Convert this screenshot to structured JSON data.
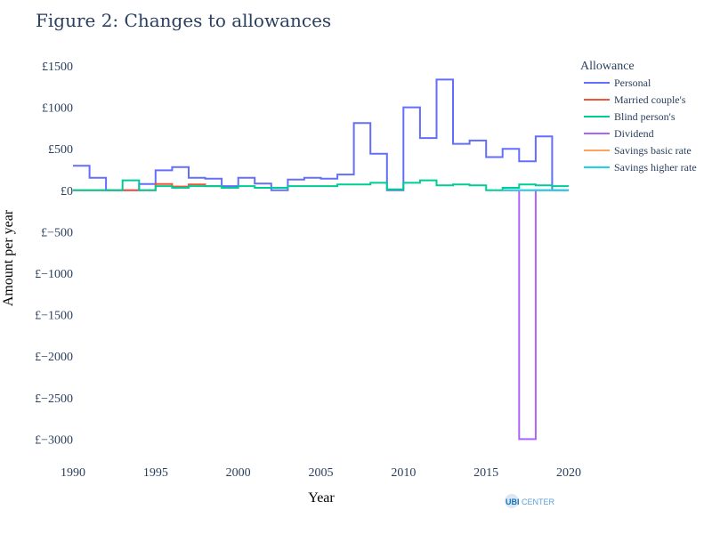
{
  "chart_data": {
    "type": "line",
    "line_shape": "step",
    "title": "Figure 2: Changes to allowances",
    "xlabel": "Year",
    "ylabel": "Amount per year",
    "xlim": [
      1990,
      2020
    ],
    "ylim": [
      -3200,
      1650
    ],
    "x_ticks": [
      1990,
      1995,
      2000,
      2005,
      2010,
      2015,
      2020
    ],
    "x_tick_labels": [
      "1990",
      "1995",
      "2000",
      "2005",
      "2010",
      "2015",
      "2020"
    ],
    "y_ticks": [
      1500,
      1000,
      500,
      0,
      -500,
      -1000,
      -1500,
      -2000,
      -2500,
      -3000
    ],
    "y_tick_labels": [
      "£1500",
      "£1000",
      "£500",
      "£0",
      "£−500",
      "£−1000",
      "£−1500",
      "£−2000",
      "£−2500",
      "£−3000"
    ],
    "grid": false,
    "legend_title": "Allowance",
    "legend_position": "right",
    "series": [
      {
        "name": "Personal",
        "color": "#636efa",
        "x": [
          1990,
          1991,
          1992,
          1993,
          1994,
          1995,
          1996,
          1997,
          1998,
          1999,
          2000,
          2001,
          2002,
          2003,
          2004,
          2005,
          2006,
          2007,
          2008,
          2009,
          2010,
          2011,
          2012,
          2013,
          2014,
          2015,
          2016,
          2017,
          2018,
          2019,
          2020
        ],
        "y": [
          295,
          150,
          0,
          0,
          75,
          240,
          280,
          150,
          140,
          50,
          150,
          80,
          0,
          130,
          150,
          140,
          190,
          810,
          440,
          0,
          1000,
          630,
          1335,
          560,
          600,
          400,
          500,
          350,
          650,
          0,
          0
        ]
      },
      {
        "name": "Married couple's",
        "color": "#ef553b",
        "x": [
          1990,
          1991,
          1992,
          1993,
          1994,
          1995,
          1996,
          1997,
          1998,
          1999
        ],
        "y": [
          0,
          0,
          0,
          0,
          0,
          75,
          45,
          70,
          50,
          50
        ]
      },
      {
        "name": "Blind person's",
        "color": "#00cc96",
        "x": [
          1990,
          1991,
          1992,
          1993,
          1994,
          1995,
          1996,
          1997,
          1998,
          1999,
          2000,
          2001,
          2002,
          2003,
          2004,
          2005,
          2006,
          2007,
          2008,
          2009,
          2010,
          2011,
          2012,
          2013,
          2014,
          2015,
          2016,
          2017,
          2018,
          2019,
          2020
        ],
        "y": [
          0,
          0,
          0,
          120,
          0,
          50,
          30,
          50,
          50,
          30,
          50,
          30,
          30,
          50,
          50,
          50,
          70,
          70,
          90,
          10,
          90,
          120,
          60,
          70,
          60,
          0,
          30,
          70,
          60,
          50,
          50
        ]
      },
      {
        "name": "Dividend",
        "color": "#ab63fa",
        "x": [
          2016,
          2017,
          2018,
          2019,
          2020
        ],
        "y": [
          0,
          -3000,
          0,
          0,
          0
        ]
      },
      {
        "name": "Savings basic rate",
        "color": "#ffa15a",
        "x": [
          2016,
          2017,
          2018,
          2019,
          2020
        ],
        "y": [
          0,
          0,
          0,
          0,
          0
        ]
      },
      {
        "name": "Savings higher rate",
        "color": "#19d3f3",
        "x": [
          2016,
          2017,
          2018,
          2019,
          2020
        ],
        "y": [
          0,
          0,
          0,
          0,
          0
        ]
      }
    ]
  },
  "logo": {
    "text_bold": "UBI",
    "text_light": "CENTER"
  }
}
